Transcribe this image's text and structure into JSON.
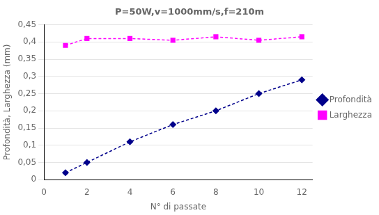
{
  "chart_data": {
    "type": "line",
    "title": "P=50W,v=1000mm/s,f=210m",
    "xlabel": "N° di passate",
    "ylabel": "Profondità, Larghezza (mm)",
    "x": [
      1,
      2,
      4,
      6,
      8,
      10,
      12
    ],
    "series": [
      {
        "name": "Profondità",
        "color": "#00008B",
        "values": [
          0.02,
          0.05,
          0.11,
          0.16,
          0.2,
          0.25,
          0.29
        ],
        "marker": "diamond",
        "line_style": "dashed"
      },
      {
        "name": "Larghezza",
        "color": "#FF00FF",
        "values": [
          0.39,
          0.41,
          0.41,
          0.405,
          0.415,
          0.405,
          0.415
        ],
        "marker": "square",
        "line_style": "dashed"
      }
    ],
    "xlim": [
      0,
      12.5
    ],
    "xticks": [
      0,
      2,
      4,
      6,
      8,
      10,
      12
    ],
    "ylim": [
      0,
      0.45
    ],
    "yticks": [
      0,
      {
        "value": 0.05,
        "label": "0,05"
      },
      {
        "value": 0.1,
        "label": "0,1"
      },
      {
        "value": 0.15,
        "label": "0,15"
      },
      {
        "value": 0.2,
        "label": "0,2"
      },
      {
        "value": 0.25,
        "label": "0,25"
      },
      {
        "value": 0.3,
        "label": "0,3"
      },
      {
        "value": 0.35,
        "label": "0,35"
      },
      {
        "value": 0.4,
        "label": "0,4"
      },
      {
        "value": 0.45,
        "label": "0,45"
      }
    ],
    "grid": "y",
    "legend": "right"
  }
}
